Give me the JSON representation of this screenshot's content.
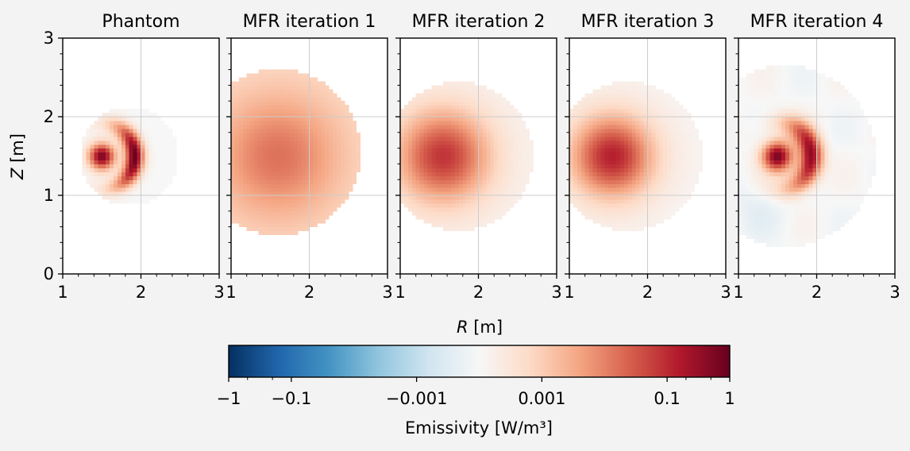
{
  "chart_data": {
    "type": "heatmap",
    "panels": [
      {
        "title": "Phantom",
        "kind": "phantom"
      },
      {
        "title": "MFR iteration 1",
        "kind": "blur",
        "center": [
          1.6,
          1.5
        ],
        "sigma": 0.55,
        "peak": 0.55,
        "floor": 0.18,
        "boundary": {
          "center": [
            1.6,
            1.55
          ],
          "radius": 1.05
        }
      },
      {
        "title": "MFR iteration 2",
        "kind": "blur",
        "center": [
          1.55,
          1.5
        ],
        "sigma": 0.42,
        "peak": 0.72,
        "floor": 0.04,
        "boundary": {
          "center": [
            1.75,
            1.5
          ],
          "radius": 0.95
        }
      },
      {
        "title": "MFR iteration 3",
        "kind": "blur",
        "center": [
          1.55,
          1.5
        ],
        "sigma": 0.37,
        "peak": 0.78,
        "floor": 0.03,
        "boundary": {
          "center": [
            1.75,
            1.5
          ],
          "radius": 0.95
        }
      },
      {
        "title": "MFR iteration 4",
        "kind": "iter4"
      }
    ],
    "x_axis": {
      "label_italic": "R",
      "label_unit": " [m]",
      "range": [
        1,
        3
      ],
      "ticks": [
        1,
        2,
        3
      ],
      "tick_labels": [
        "1",
        "2",
        "3"
      ],
      "minor_step": 0.2
    },
    "y_axis": {
      "label_italic": "Z",
      "label_unit": " [m]",
      "range": [
        0,
        3
      ],
      "ticks": [
        0,
        1,
        2,
        3
      ],
      "tick_labels": [
        "0",
        "1",
        "2",
        "3"
      ],
      "minor_step": 0.2
    },
    "grid": true,
    "colorbar": {
      "label": "Emissivity [W/m³]",
      "scale": "symlog",
      "linthresh": 0.001,
      "range": [
        -1,
        1
      ],
      "ticks": [
        {
          "value": -1,
          "label": "−1"
        },
        {
          "value": -0.1,
          "label": "−0.1"
        },
        {
          "value": -0.001,
          "label": "−0.001"
        },
        {
          "value": 0.001,
          "label": "0.001"
        },
        {
          "value": 0.1,
          "label": "0.1"
        },
        {
          "value": 1,
          "label": "1"
        }
      ],
      "minor_ticks": [
        -0.5,
        -0.2,
        0.2,
        0.5
      ],
      "colormap": "RdBu_r"
    },
    "colors": {
      "background": "#f3f3f3",
      "nan": "#ffffff",
      "grid": "#cccccc",
      "colormap_stops": [
        "#053061",
        "#2166ac",
        "#4393c3",
        "#92c5de",
        "#d1e5f0",
        "#f7f7f7",
        "#fddbc7",
        "#f4a582",
        "#d6604d",
        "#b2182b",
        "#67001f"
      ]
    }
  }
}
